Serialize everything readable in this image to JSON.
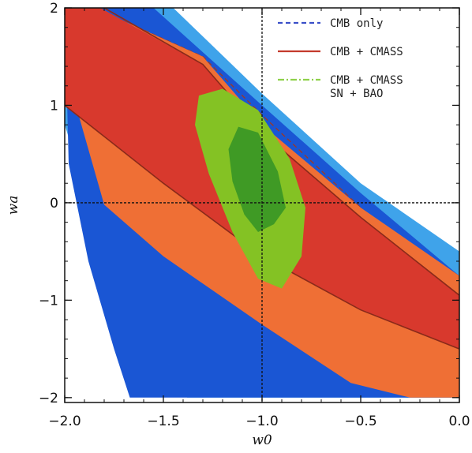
{
  "chart_data": {
    "type": "contour",
    "title": "",
    "xlabel": "w0",
    "ylabel": "wa",
    "xlim": [
      -2.0,
      0.0
    ],
    "ylim": [
      -2.05,
      2.0
    ],
    "x_ticks": [
      -2.0,
      -1.5,
      -1.0,
      -0.5,
      0.0
    ],
    "x_tick_labels": [
      "−2.0",
      "−1.5",
      "−1.0",
      "−0.5",
      "0.0"
    ],
    "y_ticks": [
      -2,
      -1,
      0,
      1,
      2
    ],
    "y_tick_labels": [
      "−2",
      "−1",
      "0",
      "1",
      "2"
    ],
    "reference_lines": {
      "x": -1.0,
      "y": 0.0
    },
    "legend_position": "top-right",
    "series": [
      {
        "name": "CMB only",
        "style": "dashed",
        "color_line": "#3a4fc8",
        "color_68": "#1a56d4",
        "color_95": "#3fa3ea",
        "region_95": [
          [
            -2.0,
            0.8
          ],
          [
            -2.0,
            2.0
          ],
          [
            -1.45,
            2.0
          ],
          [
            -1.0,
            1.12
          ],
          [
            -0.5,
            0.2
          ],
          [
            0.0,
            -0.5
          ],
          [
            0.0,
            -2.0
          ],
          [
            -1.38,
            -2.0
          ],
          [
            -1.62,
            -1.25
          ],
          [
            -1.8,
            -0.5
          ]
        ],
        "region_68": [
          [
            -1.98,
            0.4
          ],
          [
            -2.0,
            2.0
          ],
          [
            -1.55,
            2.0
          ],
          [
            -1.0,
            1.0
          ],
          [
            -0.5,
            0.1
          ],
          [
            0.0,
            -0.75
          ],
          [
            0.0,
            -2.0
          ],
          [
            -1.67,
            -2.0
          ],
          [
            -1.75,
            -1.5
          ],
          [
            -1.88,
            -0.6
          ]
        ],
        "inner_edge": [
          [
            -1.85,
            2.0
          ],
          [
            -1.3,
            1.5
          ],
          [
            -1.0,
            0.9
          ],
          [
            -0.5,
            -0.05
          ],
          [
            0.0,
            -1.15
          ]
        ]
      },
      {
        "name": "CMB + CMASS",
        "style": "solid",
        "color_line": "#c43a2c",
        "color_68": "#d8392d",
        "color_95": "#ef6f35",
        "region_95": [
          [
            -2.0,
            1.4
          ],
          [
            -2.0,
            2.0
          ],
          [
            -1.85,
            2.0
          ],
          [
            -1.3,
            1.5
          ],
          [
            -1.0,
            0.8
          ],
          [
            -0.5,
            -0.05
          ],
          [
            0.0,
            -0.75
          ],
          [
            0.0,
            -2.0
          ],
          [
            -0.25,
            -2.0
          ],
          [
            -0.55,
            -1.85
          ],
          [
            -1.0,
            -1.25
          ],
          [
            -1.5,
            -0.55
          ],
          [
            -1.8,
            -0.02
          ]
        ],
        "region_68": [
          [
            -2.0,
            2.0
          ],
          [
            -1.82,
            2.0
          ],
          [
            -1.3,
            1.42
          ],
          [
            -1.0,
            0.72
          ],
          [
            -0.5,
            -0.15
          ],
          [
            0.0,
            -0.95
          ],
          [
            0.0,
            -1.5
          ],
          [
            -0.5,
            -1.1
          ],
          [
            -1.0,
            -0.55
          ],
          [
            -1.5,
            0.2
          ],
          [
            -2.0,
            1.0
          ]
        ],
        "region_outline": [
          [
            -2.0,
            2.0
          ],
          [
            -1.8,
            2.0
          ],
          [
            -1.3,
            1.42
          ],
          [
            -1.0,
            0.72
          ],
          [
            -0.5,
            -0.15
          ],
          [
            0.0,
            -0.95
          ],
          [
            0.0,
            -1.5
          ],
          [
            -0.5,
            -1.1
          ],
          [
            -1.0,
            -0.55
          ],
          [
            -1.5,
            0.2
          ],
          [
            -2.0,
            1.0
          ]
        ]
      },
      {
        "name": "CMB + CMASS SN + BAO",
        "legend_lines": [
          "CMB + CMASS",
          "SN + BAO"
        ],
        "style": "dash-dot",
        "color_line": "#8fd14a",
        "color_68": "#3f9a25",
        "color_95": "#84c224",
        "region_95": [
          [
            -1.32,
            1.1
          ],
          [
            -1.2,
            1.17
          ],
          [
            -1.02,
            0.95
          ],
          [
            -0.86,
            0.45
          ],
          [
            -0.78,
            -0.05
          ],
          [
            -0.8,
            -0.55
          ],
          [
            -0.9,
            -0.88
          ],
          [
            -1.02,
            -0.78
          ],
          [
            -1.15,
            -0.3
          ],
          [
            -1.27,
            0.3
          ],
          [
            -1.34,
            0.8
          ]
        ],
        "region_68": [
          [
            -1.12,
            0.78
          ],
          [
            -1.02,
            0.72
          ],
          [
            -0.92,
            0.32
          ],
          [
            -0.88,
            -0.05
          ],
          [
            -0.94,
            -0.22
          ],
          [
            -1.02,
            -0.3
          ],
          [
            -1.09,
            -0.12
          ],
          [
            -1.15,
            0.22
          ],
          [
            -1.17,
            0.55
          ]
        ]
      }
    ]
  }
}
